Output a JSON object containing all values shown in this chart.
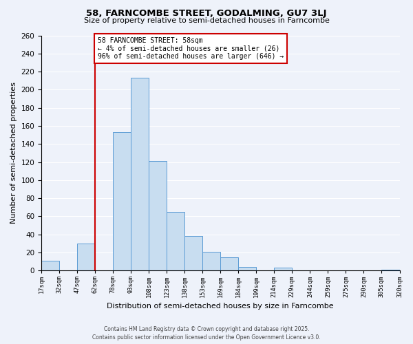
{
  "title": "58, FARNCOMBE STREET, GODALMING, GU7 3LJ",
  "subtitle": "Size of property relative to semi-detached houses in Farncombe",
  "bar_values": [
    11,
    0,
    30,
    0,
    153,
    213,
    121,
    65,
    38,
    21,
    15,
    4,
    0,
    3,
    0,
    0,
    0,
    0,
    0,
    1
  ],
  "bin_labels": [
    "17sqm",
    "32sqm",
    "47sqm",
    "62sqm",
    "78sqm",
    "93sqm",
    "108sqm",
    "123sqm",
    "138sqm",
    "153sqm",
    "169sqm",
    "184sqm",
    "199sqm",
    "214sqm",
    "229sqm",
    "244sqm",
    "259sqm",
    "275sqm",
    "290sqm",
    "305sqm",
    "320sqm"
  ],
  "bar_color": "#c8ddf0",
  "bar_edge_color": "#5b9bd5",
  "vline_color": "#cc0000",
  "ylabel": "Number of semi-detached properties",
  "xlabel": "Distribution of semi-detached houses by size in Farncombe",
  "ylim": [
    0,
    260
  ],
  "yticks": [
    0,
    20,
    40,
    60,
    80,
    100,
    120,
    140,
    160,
    180,
    200,
    220,
    240,
    260
  ],
  "annotation_title": "58 FARNCOMBE STREET: 58sqm",
  "annotation_line1": "← 4% of semi-detached houses are smaller (26)",
  "annotation_line2": "96% of semi-detached houses are larger (646) →",
  "annotation_box_color": "white",
  "annotation_box_edge": "#cc0000",
  "footer1": "Contains HM Land Registry data © Crown copyright and database right 2025.",
  "footer2": "Contains public sector information licensed under the Open Government Licence v3.0.",
  "background_color": "#eef2fa",
  "grid_color": "white",
  "title_fontsize": 9.5,
  "subtitle_fontsize": 8,
  "ylabel_fontsize": 8,
  "xlabel_fontsize": 8
}
